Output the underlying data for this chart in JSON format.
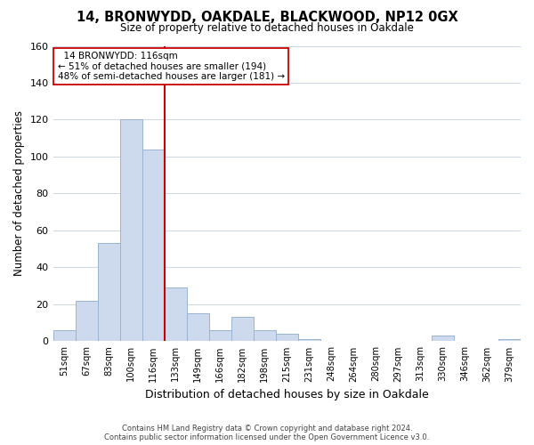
{
  "title": "14, BRONWYDD, OAKDALE, BLACKWOOD, NP12 0GX",
  "subtitle": "Size of property relative to detached houses in Oakdale",
  "xlabel": "Distribution of detached houses by size in Oakdale",
  "ylabel": "Number of detached properties",
  "bar_labels": [
    "51sqm",
    "67sqm",
    "83sqm",
    "100sqm",
    "116sqm",
    "133sqm",
    "149sqm",
    "166sqm",
    "182sqm",
    "198sqm",
    "215sqm",
    "231sqm",
    "248sqm",
    "264sqm",
    "280sqm",
    "297sqm",
    "313sqm",
    "330sqm",
    "346sqm",
    "362sqm",
    "379sqm"
  ],
  "bar_values": [
    6,
    22,
    53,
    120,
    104,
    29,
    15,
    6,
    13,
    6,
    4,
    1,
    0,
    0,
    0,
    0,
    0,
    3,
    0,
    0,
    1
  ],
  "bar_color": "#cdd9ec",
  "bar_edge_color": "#9ab4d4",
  "vline_color": "#cc0000",
  "annotation_title": "14 BRONWYDD: 116sqm",
  "annotation_line1": "← 51% of detached houses are smaller (194)",
  "annotation_line2": "48% of semi-detached houses are larger (181) →",
  "annotation_box_color": "#ffffff",
  "annotation_box_edge": "#cc0000",
  "ylim": [
    0,
    160
  ],
  "yticks": [
    0,
    20,
    40,
    60,
    80,
    100,
    120,
    140,
    160
  ],
  "footer_line1": "Contains HM Land Registry data © Crown copyright and database right 2024.",
  "footer_line2": "Contains public sector information licensed under the Open Government Licence v3.0.",
  "background_color": "#ffffff",
  "grid_color": "#ccd5e3"
}
